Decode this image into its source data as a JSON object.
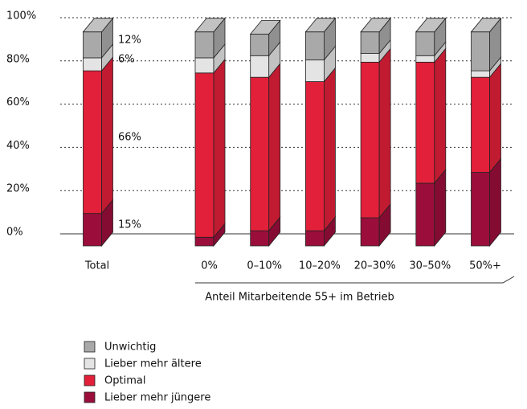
{
  "chart_data": {
    "type": "bar3d_stacked",
    "categories": [
      "Total",
      "0%",
      "0–10%",
      "10–20%",
      "20–30%",
      "30–50%",
      "50%+"
    ],
    "series": [
      {
        "name": "Unwichtig",
        "color": "#a9a9a9",
        "values": [
          12,
          12,
          10,
          13,
          10,
          11,
          18
        ]
      },
      {
        "name": "Lieber mehr ältere",
        "color": "#e4e4e4",
        "values": [
          6,
          7,
          10,
          10,
          4,
          3,
          3
        ]
      },
      {
        "name": "Optimal",
        "color": "#e2203a",
        "values": [
          66,
          76,
          71,
          69,
          72,
          56,
          44
        ]
      },
      {
        "name": "Lieber mehr jüngere",
        "color": "#9b0e3b",
        "values": [
          15,
          4,
          7,
          7,
          13,
          29,
          34
        ],
        "value_labels": [
          "15%",
          null,
          null,
          null,
          null,
          null,
          null
        ]
      }
    ],
    "value_labels_total": {
      "Unwichtig": "12%",
      "Lieber mehr ältere": "6%",
      "Optimal": "66%"
    },
    "xlabel": "Anteil Mitarbeitende 55+ im Betrieb",
    "ylim": [
      0,
      100
    ],
    "yticks": [
      {
        "value": 0,
        "label": "0%"
      },
      {
        "value": 20,
        "label": "20%"
      },
      {
        "value": 40,
        "label": "40%"
      },
      {
        "value": 60,
        "label": "60%"
      },
      {
        "value": 80,
        "label": "80%"
      },
      {
        "value": 100,
        "label": "100%"
      }
    ],
    "grid": true
  }
}
